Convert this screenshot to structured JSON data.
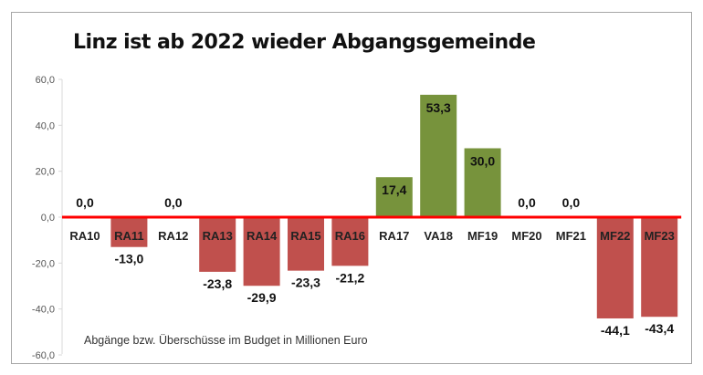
{
  "chart_data": {
    "type": "bar",
    "title": "Linz ist ab 2022 wieder Abgangsgemeinde",
    "subtitle": "Abgänge bzw. Überschüsse im Budget in Millionen Euro",
    "categories": [
      "RA10",
      "RA11",
      "RA12",
      "RA13",
      "RA14",
      "RA15",
      "RA16",
      "RA17",
      "VA18",
      "MF19",
      "MF20",
      "MF21",
      "MF22",
      "MF23"
    ],
    "values": [
      0.0,
      -13.0,
      0.0,
      -23.8,
      -29.9,
      -23.3,
      -21.2,
      17.4,
      53.3,
      30.0,
      0.0,
      0.0,
      -44.1,
      -43.4
    ],
    "value_labels": [
      "0,0",
      "-13,0",
      "0,0",
      "-23,8",
      "-29,9",
      "-23,3",
      "-21,2",
      "17,4",
      "53,3",
      "30,0",
      "0,0",
      "0,0",
      "-44,1",
      "-43,4"
    ],
    "yticks": [
      60,
      40,
      20,
      0,
      -20,
      -40,
      -60
    ],
    "ytick_labels": [
      "60,0",
      "40,0",
      "20,0",
      "0,0",
      "-20,0",
      "-40,0",
      "-60,0"
    ],
    "ylim": [
      -60,
      60
    ],
    "grid": false,
    "colors": {
      "positive": "#77933c",
      "negative": "#c0504d",
      "zero_line": "#ff0000",
      "axis": "#d9d9d9"
    }
  }
}
